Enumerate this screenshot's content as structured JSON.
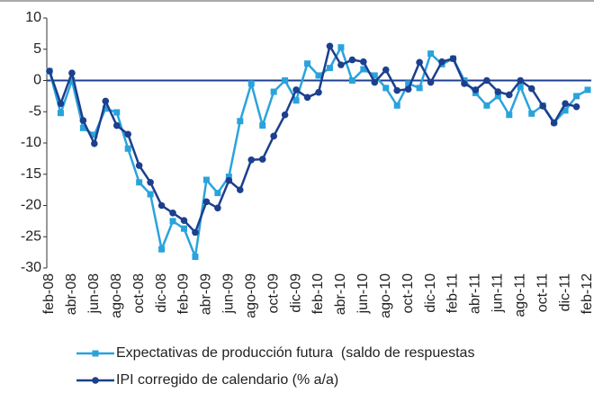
{
  "chart_data": {
    "type": "line",
    "categories": [
      "feb-08",
      null,
      "abr-08",
      null,
      "jun-08",
      null,
      "ago-08",
      null,
      "oct-08",
      null,
      "dic-08",
      null,
      "feb-09",
      null,
      "abr-09",
      null,
      "jun-09",
      null,
      "ago-09",
      null,
      "oct-09",
      null,
      "dic-09",
      null,
      "feb-10",
      null,
      "abr-10",
      null,
      "jun-10",
      null,
      "ago-10",
      null,
      "oct-10",
      null,
      "dic-10",
      null,
      "feb-11",
      null,
      "abr-11",
      null,
      "jun-11",
      null,
      "ago-11",
      null,
      "oct-11",
      null,
      "dic-11",
      null,
      "feb-12"
    ],
    "series": [
      {
        "name": "Expectativas de producción futura  (saldo de respuestas",
        "color": "#2aa3dc",
        "marker": "square",
        "values": [
          1.5,
          -5.2,
          0,
          -7.6,
          -8.7,
          -4.5,
          -5.1,
          -10.9,
          -16.3,
          -18.2,
          -27.0,
          -22.5,
          -23.7,
          -28.2,
          -15.9,
          -18.0,
          -15.4,
          -6.5,
          -0.5,
          -7.2,
          -1.8,
          0,
          -3.2,
          2.7,
          0.8,
          2.0,
          5.3,
          0,
          1.8,
          0.8,
          -1.2,
          -4.0,
          -0.5,
          -1.2,
          4.3,
          2.6,
          3.5,
          0,
          -2.0,
          -4.0,
          -2.5,
          -5.5,
          -1.0,
          -5.3,
          -4.0,
          -6.7,
          -4.8,
          -2.5,
          -1.5
        ]
      },
      {
        "name": "IPI corregido de calendario (% a/a)",
        "color": "#1c3f8e",
        "marker": "circle",
        "values": [
          1.5,
          -3.7,
          1.2,
          -6.4,
          -10.1,
          -3.3,
          -7.2,
          -8.6,
          -13.6,
          -16.3,
          -20.0,
          -21.2,
          -22.4,
          -24.3,
          -19.4,
          -20.4,
          -16.0,
          -17.5,
          -12.7,
          -12.6,
          -8.9,
          -5.5,
          -1.5,
          -2.7,
          -1.9,
          5.5,
          2.5,
          3.3,
          3.0,
          -0.3,
          1.7,
          -1.6,
          -1.4,
          2.9,
          -0.3,
          3.0,
          3.5,
          -0.5,
          -1.5,
          0,
          -1.8,
          -2.3,
          0,
          -1.3,
          -4.1,
          -6.8,
          -3.7,
          -4.2,
          null
        ]
      }
    ],
    "ylim": [
      -30,
      10
    ],
    "yticks": [
      10,
      5,
      0,
      -5,
      -10,
      -15,
      -20,
      -25,
      -30
    ],
    "zero_line": true
  }
}
